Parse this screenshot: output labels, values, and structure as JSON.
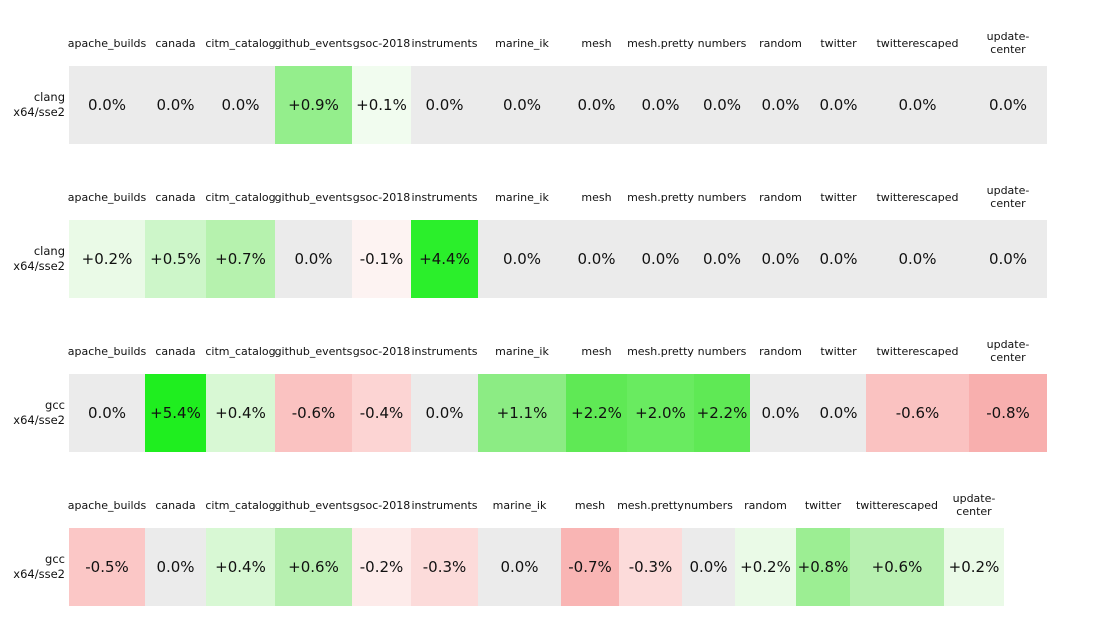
{
  "report": {
    "columns": [
      "apache_builds",
      "canada",
      "citm_catalog",
      "github_events",
      "gsoc-2018",
      "instruments",
      "marine_ik",
      "mesh",
      "mesh.pretty",
      "numbers",
      "random",
      "twitter",
      "twitterescaped",
      "update-center"
    ],
    "sections": [
      {
        "label_line1": "clang",
        "label_line2": "x64/sse2",
        "cells": [
          {
            "value": "0.0%",
            "bg": "#ebebeb"
          },
          {
            "value": "0.0%",
            "bg": "#ebebeb"
          },
          {
            "value": "0.0%",
            "bg": "#ebebeb"
          },
          {
            "value": "+0.9%",
            "bg": "#94ee8c"
          },
          {
            "value": "+0.1%",
            "bg": "#f1fcef"
          },
          {
            "value": "0.0%",
            "bg": "#ebebeb"
          },
          {
            "value": "0.0%",
            "bg": "#ebebeb"
          },
          {
            "value": "0.0%",
            "bg": "#ebebeb"
          },
          {
            "value": "0.0%",
            "bg": "#ebebeb"
          },
          {
            "value": "0.0%",
            "bg": "#ebebeb"
          },
          {
            "value": "0.0%",
            "bg": "#ebebeb"
          },
          {
            "value": "0.0%",
            "bg": "#ebebeb"
          },
          {
            "value": "0.0%",
            "bg": "#ebebeb"
          },
          {
            "value": "0.0%",
            "bg": "#ebebeb"
          }
        ]
      },
      {
        "label_line1": "clang",
        "label_line2": "x64/sse2",
        "cells": [
          {
            "value": "+0.2%",
            "bg": "#eafae7"
          },
          {
            "value": "+0.5%",
            "bg": "#cdf6c9"
          },
          {
            "value": "+0.7%",
            "bg": "#b6f2ae"
          },
          {
            "value": "0.0%",
            "bg": "#ebebeb"
          },
          {
            "value": "-0.1%",
            "bg": "#fdf3f2"
          },
          {
            "value": "+4.4%",
            "bg": "#2bef2b"
          },
          {
            "value": "0.0%",
            "bg": "#ebebeb"
          },
          {
            "value": "0.0%",
            "bg": "#ebebeb"
          },
          {
            "value": "0.0%",
            "bg": "#ebebeb"
          },
          {
            "value": "0.0%",
            "bg": "#ebebeb"
          },
          {
            "value": "0.0%",
            "bg": "#ebebeb"
          },
          {
            "value": "0.0%",
            "bg": "#ebebeb"
          },
          {
            "value": "0.0%",
            "bg": "#ebebeb"
          },
          {
            "value": "0.0%",
            "bg": "#ebebeb"
          }
        ]
      },
      {
        "label_line1": "gcc",
        "label_line2": "x64/sse2",
        "cells": [
          {
            "value": "0.0%",
            "bg": "#ebebeb"
          },
          {
            "value": "+5.4%",
            "bg": "#1fee1f"
          },
          {
            "value": "+0.4%",
            "bg": "#d8f8d4"
          },
          {
            "value": "-0.6%",
            "bg": "#fac2c1"
          },
          {
            "value": "-0.4%",
            "bg": "#fcd4d3"
          },
          {
            "value": "0.0%",
            "bg": "#ebebeb"
          },
          {
            "value": "+1.1%",
            "bg": "#8cec84"
          },
          {
            "value": "+2.2%",
            "bg": "#5fe955"
          },
          {
            "value": "+2.0%",
            "bg": "#69eb60"
          },
          {
            "value": "+2.2%",
            "bg": "#5fe955"
          },
          {
            "value": "0.0%",
            "bg": "#ebebeb"
          },
          {
            "value": "0.0%",
            "bg": "#ebebeb"
          },
          {
            "value": "-0.6%",
            "bg": "#fac2c1"
          },
          {
            "value": "-0.8%",
            "bg": "#f8afae"
          }
        ]
      },
      {
        "label_line1": "gcc",
        "label_line2": "x64/sse2",
        "cells": [
          {
            "value": "-0.5%",
            "bg": "#fbc7c6"
          },
          {
            "value": "0.0%",
            "bg": "#ebebeb"
          },
          {
            "value": "+0.4%",
            "bg": "#d8f8d4"
          },
          {
            "value": "+0.6%",
            "bg": "#b7f0b0"
          },
          {
            "value": "-0.2%",
            "bg": "#fdebea"
          },
          {
            "value": "-0.3%",
            "bg": "#fcdbda"
          },
          {
            "value": "0.0%",
            "bg": "#ebebeb"
          },
          {
            "value": "-0.7%",
            "bg": "#f9b5b4"
          },
          {
            "value": "-0.3%",
            "bg": "#fcdbda"
          },
          {
            "value": "0.0%",
            "bg": "#ebebeb"
          },
          {
            "value": "+0.2%",
            "bg": "#eafae7"
          },
          {
            "value": "+0.8%",
            "bg": "#9cee93"
          },
          {
            "value": "+0.6%",
            "bg": "#b7f0b0"
          },
          {
            "value": "+0.2%",
            "bg": "#eafae7"
          }
        ]
      }
    ]
  },
  "colors": {
    "zero_cell_bg": "#ebebeb",
    "positive_max": "#1fee1f",
    "negative_max": "#f8afae",
    "text": "#111111",
    "page_bg": "#ffffff"
  },
  "chart_data": {
    "type": "heatmap",
    "title": "",
    "columns": [
      "apache_builds",
      "canada",
      "citm_catalog",
      "github_events",
      "gsoc-2018",
      "instruments",
      "marine_ik",
      "mesh",
      "mesh.pretty",
      "numbers",
      "random",
      "twitter",
      "twitterescaped",
      "update-center"
    ],
    "rows": [
      {
        "label": "clang x64/sse2",
        "values_pct": [
          0.0,
          0.0,
          0.0,
          0.9,
          0.1,
          0.0,
          0.0,
          0.0,
          0.0,
          0.0,
          0.0,
          0.0,
          0.0,
          0.0
        ]
      },
      {
        "label": "clang x64/sse2",
        "values_pct": [
          0.2,
          0.5,
          0.7,
          0.0,
          -0.1,
          4.4,
          0.0,
          0.0,
          0.0,
          0.0,
          0.0,
          0.0,
          0.0,
          0.0
        ]
      },
      {
        "label": "gcc x64/sse2",
        "values_pct": [
          0.0,
          5.4,
          0.4,
          -0.6,
          -0.4,
          0.0,
          1.1,
          2.2,
          2.0,
          2.2,
          0.0,
          0.0,
          -0.6,
          -0.8
        ]
      },
      {
        "label": "gcc x64/sse2",
        "values_pct": [
          -0.5,
          0.0,
          0.4,
          0.6,
          -0.2,
          -0.3,
          0.0,
          -0.7,
          -0.3,
          0.0,
          0.2,
          0.8,
          0.6,
          0.2
        ]
      }
    ],
    "value_format": "signed percent, one decimal",
    "colorscale": "diverging: white-to-green for positive, white-to-red for negative, light gray for zero",
    "layout": {
      "sections_rendered_separately": true,
      "column_headers_repeated_per_row": true,
      "last_column_clipped_in_rows_1_to_3": true
    }
  }
}
